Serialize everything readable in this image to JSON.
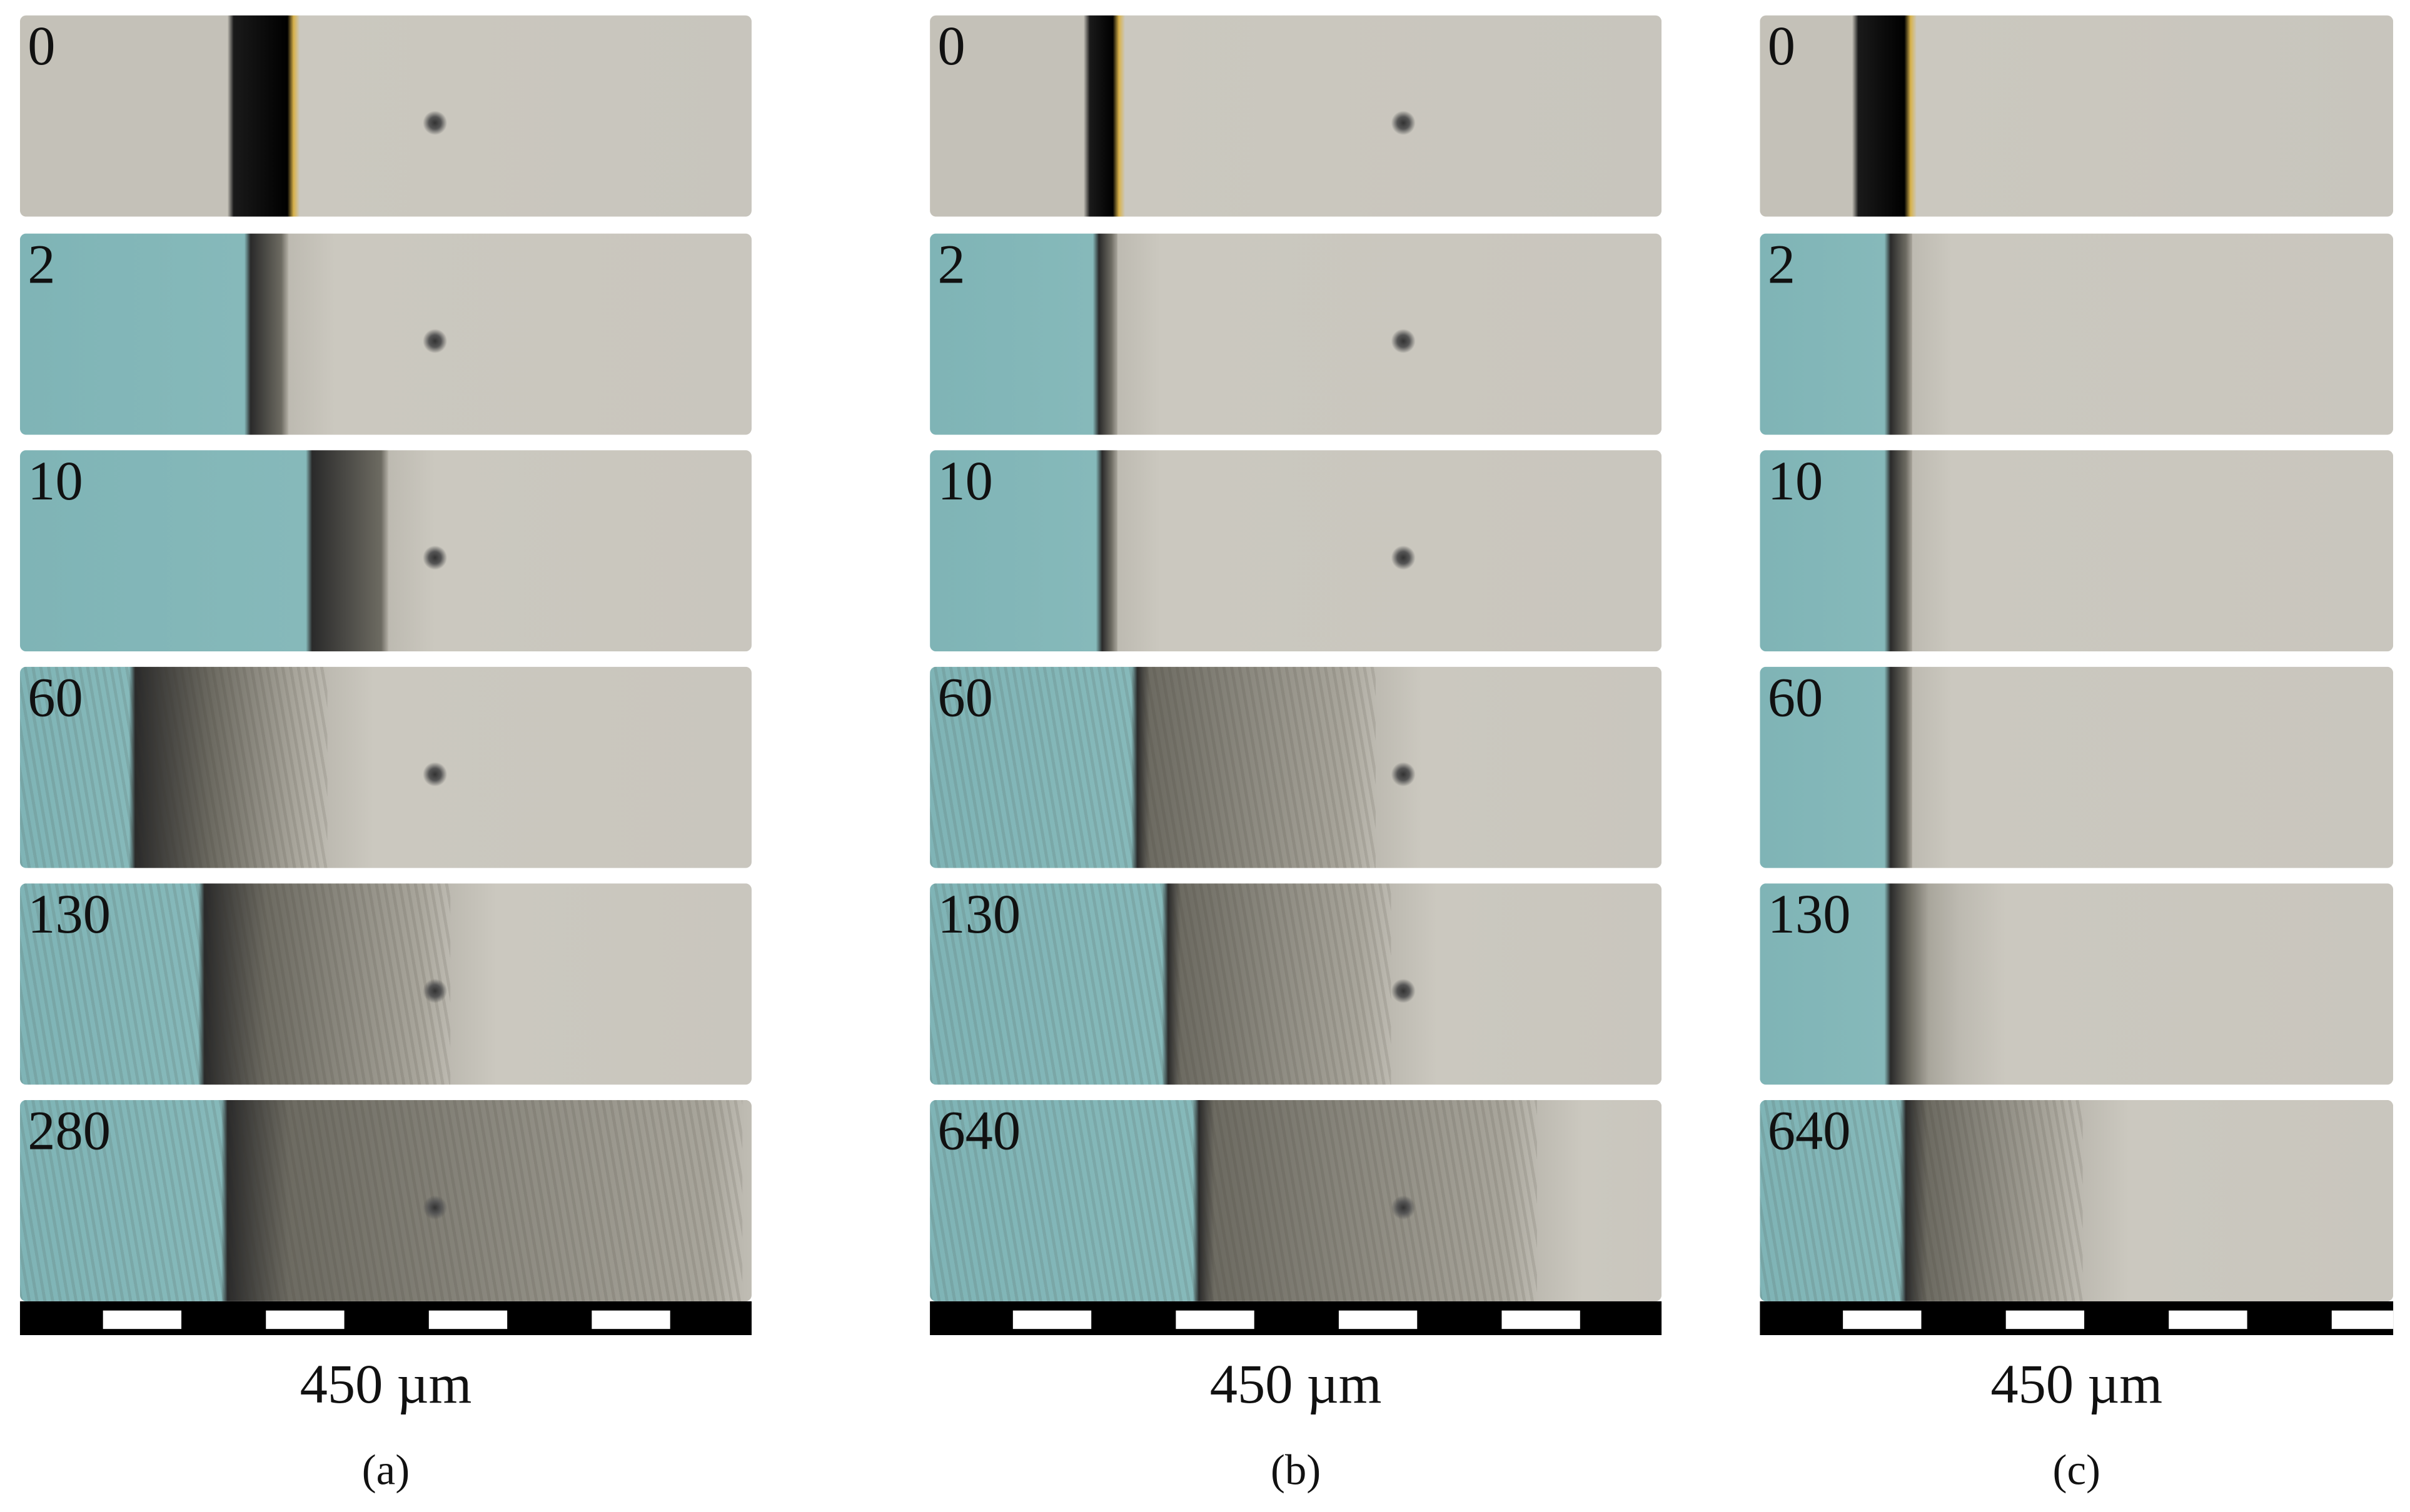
{
  "colors": {
    "medium": "#7fb4b6",
    "substrate": "#cbc8bf",
    "boundary": "#111111"
  },
  "panels": [
    {
      "id": "a",
      "label": "(a)",
      "scale_label": "450 µm",
      "frames": [
        "0",
        "2",
        "10",
        "60",
        "130",
        "280"
      ]
    },
    {
      "id": "b",
      "label": "(b)",
      "scale_label": "450 µm",
      "frames": [
        "0",
        "2",
        "10",
        "60",
        "130",
        "640"
      ]
    },
    {
      "id": "c",
      "label": "(c)",
      "scale_label": "450 µm",
      "frames": [
        "0",
        "2",
        "10",
        "60",
        "130",
        "640"
      ]
    }
  ]
}
